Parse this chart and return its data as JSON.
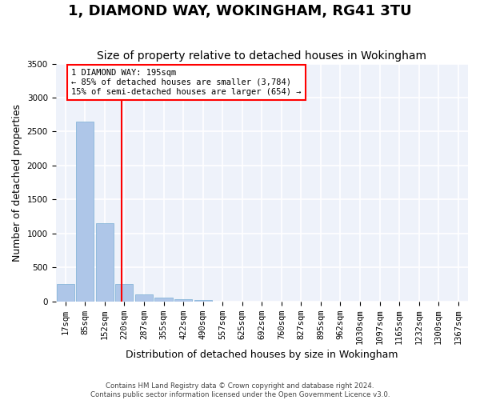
{
  "title": "1, DIAMOND WAY, WOKINGHAM, RG41 3TU",
  "subtitle": "Size of property relative to detached houses in Wokingham",
  "xlabel": "Distribution of detached houses by size in Wokingham",
  "ylabel": "Number of detached properties",
  "footer_line1": "Contains HM Land Registry data © Crown copyright and database right 2024.",
  "footer_line2": "Contains public sector information licensed under the Open Government Licence v3.0.",
  "bins": [
    "17sqm",
    "85sqm",
    "152sqm",
    "220sqm",
    "287sqm",
    "355sqm",
    "422sqm",
    "490sqm",
    "557sqm",
    "625sqm",
    "692sqm",
    "760sqm",
    "827sqm",
    "895sqm",
    "962sqm",
    "1030sqm",
    "1097sqm",
    "1165sqm",
    "1232sqm",
    "1300sqm",
    "1367sqm"
  ],
  "values": [
    250,
    2650,
    1150,
    260,
    100,
    50,
    30,
    20,
    0,
    0,
    0,
    0,
    0,
    0,
    0,
    0,
    0,
    0,
    0,
    0,
    0
  ],
  "bar_color": "#aec6e8",
  "bar_edgecolor": "#7aafd4",
  "property_line_x": 2.85,
  "property_value": "195sqm",
  "annotation_text": "1 DIAMOND WAY: 195sqm\n← 85% of detached houses are smaller (3,784)\n15% of semi-detached houses are larger (654) →",
  "annotation_box_color": "white",
  "annotation_box_edgecolor": "red",
  "red_line_color": "red",
  "ylim": [
    0,
    3500
  ],
  "yticks": [
    0,
    500,
    1000,
    1500,
    2000,
    2500,
    3000,
    3500
  ],
  "background_color": "#eef2fa",
  "grid_color": "white",
  "title_fontsize": 13,
  "subtitle_fontsize": 10,
  "axis_label_fontsize": 9,
  "tick_fontsize": 7.5
}
